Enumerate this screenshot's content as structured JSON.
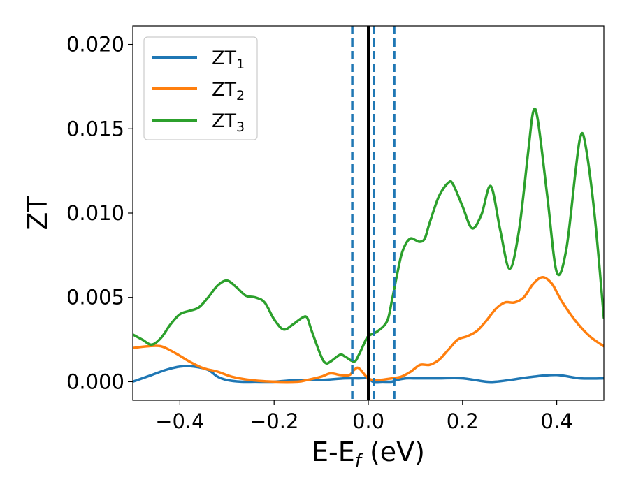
{
  "chart_data": {
    "type": "line",
    "xlabel_main": "E-E",
    "xlabel_sub": "f",
    "xlabel_unit": " (eV)",
    "ylabel": "ZT",
    "xlim": [
      -0.5,
      0.5
    ],
    "ylim": [
      -0.0011,
      0.0211
    ],
    "x_ticks": [
      -0.4,
      -0.2,
      0.0,
      0.2,
      0.4
    ],
    "x_tick_labels": [
      "−0.4",
      "−0.2",
      "0.0",
      "0.2",
      "0.4"
    ],
    "y_ticks": [
      0.0,
      0.005,
      0.01,
      0.015,
      0.02
    ],
    "y_tick_labels": [
      "0.000",
      "0.005",
      "0.010",
      "0.015",
      "0.020"
    ],
    "grid": false,
    "legend_position": "top-left",
    "series": [
      {
        "name": "ZT",
        "name_sub": "1",
        "color": "#1f77b4",
        "x": [
          -0.5,
          -0.46,
          -0.43,
          -0.4,
          -0.37,
          -0.34,
          -0.32,
          -0.3,
          -0.27,
          -0.24,
          -0.2,
          -0.15,
          -0.1,
          -0.05,
          -0.02,
          0.0,
          0.01,
          0.03,
          0.05,
          0.06,
          0.08,
          0.1,
          0.15,
          0.2,
          0.25,
          0.27,
          0.3,
          0.35,
          0.4,
          0.45,
          0.5
        ],
        "y": [
          0.0,
          0.0004,
          0.0007,
          0.0009,
          0.0009,
          0.0007,
          0.0003,
          0.0001,
          0.0,
          0.0,
          0.0,
          0.0001,
          0.0001,
          0.0002,
          0.0002,
          0.0002,
          0.0,
          0.0,
          0.0,
          0.0001,
          0.0002,
          0.0002,
          0.0002,
          0.0002,
          0.0,
          0.0,
          0.0001,
          0.0003,
          0.0004,
          0.0002,
          0.0002
        ]
      },
      {
        "name": "ZT",
        "name_sub": "2",
        "color": "#ff7f0e",
        "x": [
          -0.5,
          -0.47,
          -0.44,
          -0.41,
          -0.38,
          -0.35,
          -0.32,
          -0.29,
          -0.25,
          -0.2,
          -0.15,
          -0.13,
          -0.1,
          -0.08,
          -0.06,
          -0.04,
          -0.03,
          -0.02,
          0.0,
          0.02,
          0.05,
          0.07,
          0.09,
          0.11,
          0.13,
          0.15,
          0.17,
          0.19,
          0.21,
          0.23,
          0.25,
          0.27,
          0.29,
          0.31,
          0.33,
          0.35,
          0.37,
          0.39,
          0.41,
          0.44,
          0.47,
          0.5
        ],
        "y": [
          0.002,
          0.0021,
          0.0021,
          0.0017,
          0.0012,
          0.0008,
          0.0006,
          0.0003,
          0.0001,
          0.0,
          0.0,
          0.0001,
          0.0003,
          0.0005,
          0.0004,
          0.0004,
          0.0007,
          0.0008,
          0.0002,
          0.0001,
          0.0002,
          0.0003,
          0.0006,
          0.001,
          0.001,
          0.0013,
          0.0019,
          0.0025,
          0.0027,
          0.003,
          0.0036,
          0.0043,
          0.0047,
          0.0047,
          0.005,
          0.0058,
          0.0062,
          0.0058,
          0.0048,
          0.0036,
          0.0027,
          0.0021
        ]
      },
      {
        "name": "ZT",
        "name_sub": "3",
        "color": "#2ca02c",
        "x": [
          -0.5,
          -0.48,
          -0.46,
          -0.44,
          -0.42,
          -0.4,
          -0.38,
          -0.36,
          -0.34,
          -0.32,
          -0.3,
          -0.28,
          -0.26,
          -0.24,
          -0.22,
          -0.2,
          -0.18,
          -0.16,
          -0.14,
          -0.13,
          -0.12,
          -0.1,
          -0.09,
          -0.08,
          -0.06,
          -0.05,
          -0.03,
          -0.02,
          -0.01,
          0.0,
          0.02,
          0.04,
          0.05,
          0.06,
          0.07,
          0.08,
          0.09,
          0.1,
          0.11,
          0.12,
          0.13,
          0.15,
          0.17,
          0.18,
          0.2,
          0.22,
          0.24,
          0.26,
          0.28,
          0.3,
          0.32,
          0.34,
          0.35,
          0.36,
          0.38,
          0.4,
          0.42,
          0.44,
          0.45,
          0.46,
          0.48,
          0.5
        ],
        "y": [
          0.0028,
          0.0025,
          0.0022,
          0.0026,
          0.0034,
          0.004,
          0.0042,
          0.0044,
          0.005,
          0.0057,
          0.006,
          0.0056,
          0.0051,
          0.005,
          0.0047,
          0.0037,
          0.0031,
          0.0034,
          0.0038,
          0.0038,
          0.003,
          0.0015,
          0.0011,
          0.0012,
          0.0016,
          0.0015,
          0.0012,
          0.0016,
          0.0022,
          0.0027,
          0.003,
          0.0036,
          0.0048,
          0.0062,
          0.0075,
          0.0082,
          0.0085,
          0.0084,
          0.0083,
          0.0085,
          0.0094,
          0.011,
          0.0118,
          0.0117,
          0.0104,
          0.0091,
          0.0099,
          0.0116,
          0.009,
          0.0067,
          0.009,
          0.0138,
          0.016,
          0.0155,
          0.011,
          0.0065,
          0.0078,
          0.0125,
          0.0145,
          0.0142,
          0.01,
          0.0038
        ]
      }
    ],
    "vlines": [
      {
        "x": -0.034,
        "color": "#1f77b4",
        "style": "dashed"
      },
      {
        "x": 0.0,
        "color": "#000000",
        "style": "solid"
      },
      {
        "x": 0.012,
        "color": "#1f77b4",
        "style": "dashed"
      },
      {
        "x": 0.055,
        "color": "#1f77b4",
        "style": "dashed"
      }
    ]
  }
}
